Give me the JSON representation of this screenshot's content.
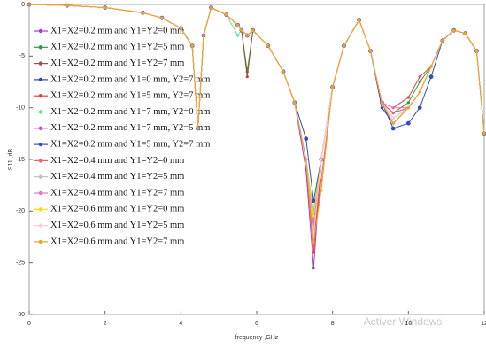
{
  "chart_data": {
    "type": "line",
    "xlabel": "frequency ,GHz",
    "ylabel": "S11 ,dB",
    "watermark": "Activer Windows",
    "xlim": [
      0,
      12
    ],
    "xticks": [
      0,
      2,
      4,
      6,
      8,
      10,
      12
    ],
    "ylim": [
      -30,
      0
    ],
    "yticks": [
      0,
      -5,
      -10,
      -15,
      -20,
      -25,
      -30
    ],
    "legend": "upper left",
    "x": [
      0,
      1,
      2,
      3,
      3.5,
      4,
      4.3,
      4.45,
      4.6,
      4.8,
      5.2,
      5.5,
      5.6,
      5.75,
      5.9,
      6.3,
      6.7,
      7,
      7.3,
      7.5,
      7.7,
      8,
      8.3,
      8.7,
      9,
      9.3,
      9.6,
      10,
      10.3,
      10.6,
      10.9,
      11.2,
      11.5,
      11.8,
      12
    ],
    "series": [
      {
        "name": "X1=X2=0.2 mm and Y1=Y2=0 mm",
        "color": "#a040c0",
        "values": [
          0,
          -0.1,
          -0.3,
          -0.8,
          -1.3,
          -2.3,
          -4,
          -12,
          -3,
          -0.3,
          -1,
          -2,
          -2.5,
          -3,
          -2.5,
          -4,
          -6.5,
          -9.5,
          -16,
          -25.5,
          -15,
          -8,
          -4,
          -1.5,
          -4.5,
          -9.5,
          -11.5,
          -10,
          -8.5,
          -6,
          -3.5,
          -2.5,
          -2.8,
          -4.5,
          -12.5
        ]
      },
      {
        "name": "X1=X2=0.2 mm and Y1=Y2=5 mm",
        "color": "#2a9a3a",
        "values": [
          0,
          -0.1,
          -0.3,
          -0.8,
          -1.3,
          -2.3,
          -4,
          -12,
          -3,
          -0.3,
          -1,
          -2,
          -2.5,
          -6.5,
          -2.5,
          -4,
          -6.5,
          -9.5,
          -15,
          -21,
          -15,
          -8,
          -4,
          -1.5,
          -4.5,
          -9.5,
          -10.5,
          -9.5,
          -7.5,
          -6,
          -3.5,
          -2.5,
          -2.8,
          -4.5,
          -12.5
        ]
      },
      {
        "name": "X1=X2=0.2 mm and Y1=Y2=7 mm",
        "color": "#a05040",
        "values": [
          0,
          -0.1,
          -0.3,
          -0.8,
          -1.3,
          -2.3,
          -4,
          -12,
          -3,
          -0.3,
          -1,
          -2,
          -2.5,
          -7,
          -2.5,
          -4,
          -6.5,
          -9.5,
          -15,
          -23,
          -15,
          -8,
          -4,
          -1.5,
          -4.5,
          -9.5,
          -11,
          -10,
          -8.5,
          -6,
          -3.5,
          -2.5,
          -2.8,
          -4.5,
          -12.5
        ]
      },
      {
        "name": "X1=X2=0.2 mm and Y1=0 mm, Y2=7 mm",
        "color": "#3040c0",
        "values": [
          0,
          -0.1,
          -0.3,
          -0.8,
          -1.3,
          -2.3,
          -4,
          -12,
          -3,
          -0.3,
          -1,
          -2,
          -2.5,
          -3,
          -2.5,
          -4,
          -6.5,
          -9.5,
          -15,
          -22.5,
          -15,
          -8,
          -4,
          -1.5,
          -4.5,
          -10,
          -11.5,
          -10,
          -8.5,
          -6,
          -3.5,
          -2.5,
          -2.8,
          -4.5,
          -12.5
        ]
      },
      {
        "name": "X1=X2=0.2 mm and Y1=5 mm, Y2=7 mm",
        "color": "#e04040",
        "values": [
          0,
          -0.1,
          -0.3,
          -0.8,
          -1.3,
          -2.3,
          -4,
          -12,
          -3,
          -0.3,
          -1,
          -2,
          -2.5,
          -3,
          -2.5,
          -4,
          -6.5,
          -9.5,
          -15,
          -24,
          -15,
          -8,
          -4,
          -1.5,
          -4.5,
          -9.5,
          -10,
          -9,
          -7,
          -6,
          -3.5,
          -2.5,
          -2.8,
          -4.5,
          -12.5
        ]
      },
      {
        "name": "X1=X2=0.2 mm and Y1=7 mm, Y2=0 mm",
        "color": "#60e0a0",
        "values": [
          0,
          -0.1,
          -0.3,
          -0.8,
          -1.3,
          -2.3,
          -4,
          -12,
          -3,
          -0.3,
          -1,
          -3,
          -2.5,
          -3,
          -2.5,
          -4,
          -6.5,
          -9.5,
          -15,
          -20,
          -15,
          -8,
          -4,
          -1.5,
          -4.5,
          -9.5,
          -11,
          -10,
          -8.5,
          -6,
          -3.5,
          -2.5,
          -2.8,
          -4.5,
          -12.5
        ]
      },
      {
        "name": "X1=X2=0.2 mm and Y1=7 mm, Y2=5 mm",
        "color": "#e040e0",
        "values": [
          0,
          -0.1,
          -0.3,
          -0.8,
          -1.3,
          -2.3,
          -4,
          -12,
          -3,
          -0.3,
          -1,
          -2,
          -2.5,
          -3,
          -2.5,
          -4,
          -6.5,
          -9.5,
          -15,
          -21.5,
          -15,
          -8,
          -4,
          -1.5,
          -4.5,
          -9.5,
          -10.5,
          -10,
          -8.5,
          -6,
          -3.5,
          -2.5,
          -2.8,
          -4.5,
          -12.5
        ]
      },
      {
        "name": "X1=X2=0.2 mm and Y1=5 mm, Y2=7 mm",
        "color": "#3050c0",
        "values": [
          0,
          -0.1,
          -0.3,
          -0.8,
          -1.3,
          -2.3,
          -4,
          -12,
          -3,
          -0.3,
          -1,
          -2,
          -2.5,
          -3,
          -2.5,
          -4,
          -6.5,
          -9.5,
          -13,
          -19,
          -15,
          -8,
          -4,
          -1.5,
          -4.5,
          -9.5,
          -12,
          -11.5,
          -10,
          -7,
          -3.5,
          -2.5,
          -2.8,
          -4.5,
          -12.5
        ]
      },
      {
        "name": "X1=X2=0.4 mm and Y1=Y2=0 mm",
        "color": "#f06060",
        "values": [
          0,
          -0.1,
          -0.3,
          -0.8,
          -1.3,
          -2.3,
          -4,
          -12,
          -3,
          -0.3,
          -1,
          -2,
          -2.5,
          -3,
          -2.5,
          -4,
          -6.5,
          -9.5,
          -15,
          -23.5,
          -17,
          -8,
          -4,
          -1.5,
          -4.5,
          -9.5,
          -10.5,
          -10,
          -8.5,
          -6,
          -3.5,
          -2.5,
          -2.8,
          -4.5,
          -12.5
        ]
      },
      {
        "name": "X1=X2=0.4 mm and Y1=Y2=5 mm",
        "color": "#c0c0c0",
        "values": [
          0,
          -0.1,
          -0.3,
          -0.8,
          -1.3,
          -2.3,
          -4,
          -12,
          -3,
          -0.3,
          -1,
          -2,
          -2.5,
          -3,
          -2.5,
          -4,
          -6.5,
          -9.5,
          -15,
          -22,
          -15,
          -8,
          -4,
          -1.5,
          -4.5,
          -9.5,
          -11,
          -10,
          -8.5,
          -6,
          -3.5,
          -2.5,
          -2.8,
          -4.5,
          -12.5
        ]
      },
      {
        "name": "X1=X2=0.4 mm and Y1=Y2=7 mm",
        "color": "#f070c0",
        "values": [
          0,
          -0.1,
          -0.3,
          -0.8,
          -1.3,
          -2.3,
          -4,
          -12,
          -3,
          -0.3,
          -1,
          -2,
          -2.5,
          -3,
          -2.5,
          -4,
          -6.5,
          -9.5,
          -15,
          -21,
          -15,
          -8,
          -4,
          -1.5,
          -4.5,
          -9.5,
          -10,
          -10,
          -8.5,
          -6,
          -3.5,
          -2.5,
          -2.8,
          -4.5,
          -12.5
        ]
      },
      {
        "name": "X1=X2=0.6 mm and Y1=Y2=0 mm",
        "color": "#f0e000",
        "values": [
          0,
          -0.1,
          -0.3,
          -0.8,
          -1.3,
          -2.3,
          -4,
          -12,
          -3,
          -0.3,
          -1,
          -2,
          -2.5,
          -3,
          -2.5,
          -4,
          -6.5,
          -9.5,
          -15,
          -20.5,
          -15,
          -8,
          -4,
          -1.5,
          -4.5,
          -9.5,
          -11.5,
          -10,
          -8.5,
          -6,
          -3.5,
          -2.5,
          -2.8,
          -4.5,
          -12.5
        ]
      },
      {
        "name": "X1=X2=0.6 mm and Y1=Y2=5 mm",
        "color": "#ffc8dc",
        "values": [
          0,
          -0.1,
          -0.3,
          -0.8,
          -1.3,
          -2.3,
          -4,
          -12,
          -3,
          -0.3,
          -1,
          -2,
          -2.5,
          -3,
          -2.5,
          -4,
          -6.5,
          -9.5,
          -15,
          -22.5,
          -15,
          -8,
          -4,
          -1.5,
          -4.5,
          -9.5,
          -11,
          -10,
          -8.5,
          -6,
          -3.5,
          -2.5,
          -2.8,
          -4.5,
          -12.5
        ]
      },
      {
        "name": "X1=X2=0.6 mm and Y1=Y2=7 mm",
        "color": "#f0a020",
        "values": [
          0,
          -0.1,
          -0.3,
          -0.8,
          -1.3,
          -2.3,
          -4,
          -12,
          -3,
          -0.3,
          -1,
          -2,
          -2.5,
          -3,
          -2.5,
          -4,
          -6.5,
          -9.5,
          -15,
          -23,
          -18,
          -8,
          -4,
          -1.5,
          -4.5,
          -9.5,
          -11.5,
          -10,
          -8.5,
          -6,
          -3.5,
          -2.5,
          -2.8,
          -4.5,
          -12.5
        ]
      }
    ]
  }
}
